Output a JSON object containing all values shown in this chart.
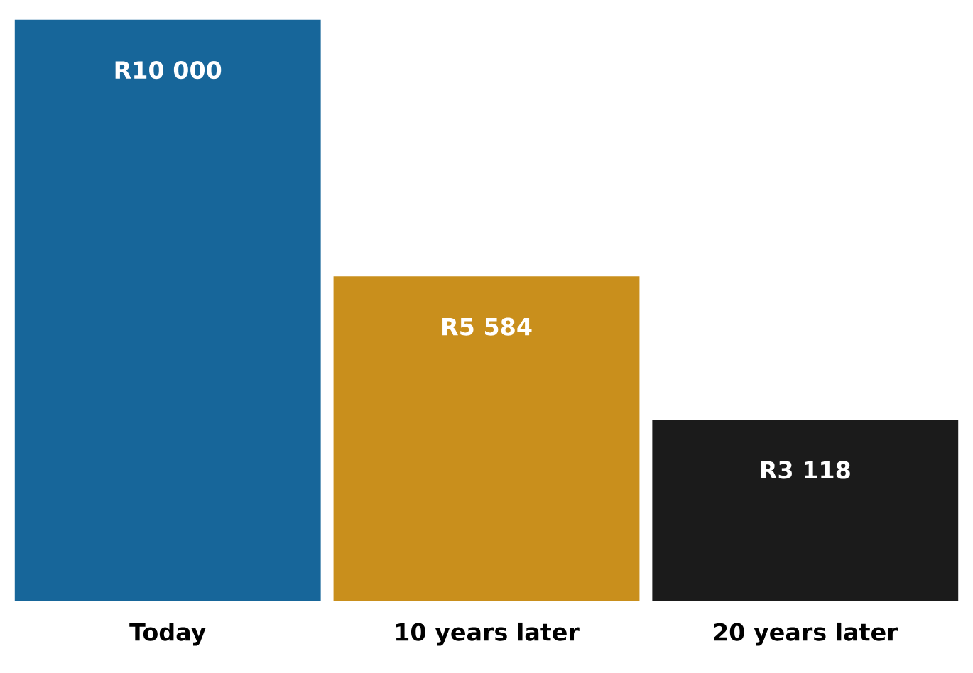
{
  "chart_data": {
    "type": "bar",
    "categories": [
      "Today",
      "10 years later",
      "20 years later"
    ],
    "values": [
      10000,
      5584,
      3118
    ],
    "colors": [
      "#17669a",
      "#c98f1c",
      "#1b1b1b"
    ],
    "value_labels": [
      "R10 000",
      "R5 584",
      "R3 118"
    ]
  }
}
